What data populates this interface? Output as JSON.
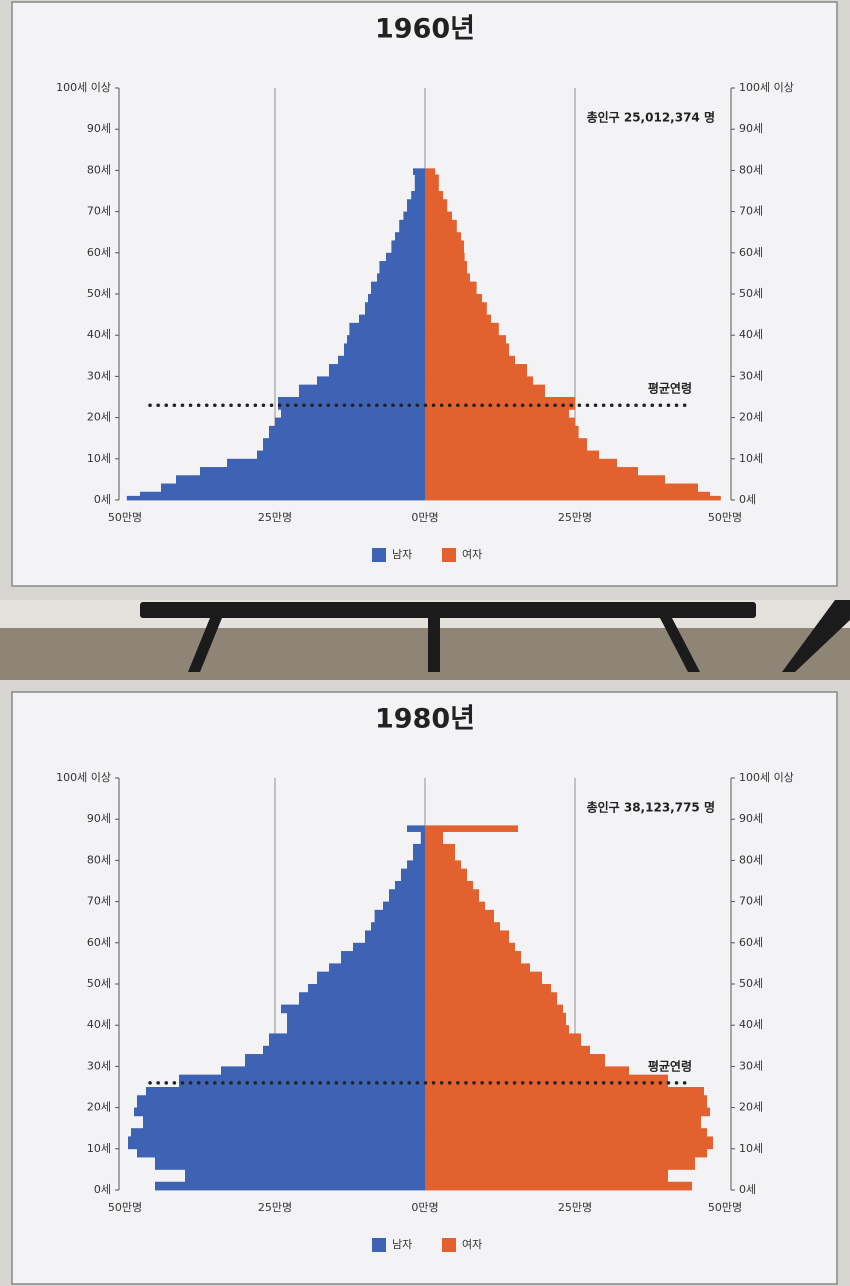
{
  "chart_data": [
    {
      "type": "pyramid",
      "title": "1960년",
      "annotation": "총인구 25,012,374 명",
      "average_age_label": "평균연령",
      "average_age": 23,
      "y": [
        0,
        1,
        2,
        4,
        6,
        8,
        10,
        12,
        15,
        18,
        20,
        22,
        25,
        28,
        30,
        33,
        35,
        38,
        40,
        43,
        45,
        48,
        50,
        53,
        55,
        58,
        60,
        63,
        65,
        68,
        70,
        73,
        75,
        79
      ],
      "series": [
        {
          "name": "남자",
          "color": "#3f63b4",
          "values": [
            49.7,
            47.5,
            44,
            41.5,
            37.5,
            33,
            28,
            27,
            26,
            25,
            24,
            24.5,
            21,
            18,
            16,
            14.5,
            13.5,
            13,
            12.6,
            11,
            10,
            9.5,
            9,
            8,
            7.6,
            6.5,
            5.6,
            5,
            4.3,
            3.6,
            3,
            2.3,
            1.7,
            2
          ]
        },
        {
          "name": "여자",
          "color": "#e2612e",
          "values": [
            49.3,
            47.5,
            45.5,
            40,
            35.5,
            32,
            29,
            27,
            25.6,
            25,
            24,
            25,
            20,
            18,
            17,
            15,
            14,
            13.5,
            12.3,
            11,
            10.3,
            9.5,
            8.6,
            7.5,
            7,
            6.6,
            6.5,
            6,
            5.3,
            4.5,
            3.7,
            3,
            2.3,
            1.7
          ]
        }
      ],
      "xlim": [
        -50,
        50
      ],
      "xticks": [
        {
          "value": -50,
          "label": "50만명"
        },
        {
          "value": -25,
          "label": "25만명"
        },
        {
          "value": 0,
          "label": "0만명"
        },
        {
          "value": 25,
          "label": "25만명"
        },
        {
          "value": 50,
          "label": "50만명"
        }
      ],
      "ylim": [
        0,
        100
      ],
      "yticks": [
        {
          "value": 0,
          "label": "0세"
        },
        {
          "value": 10,
          "label": "10세"
        },
        {
          "value": 20,
          "label": "20세"
        },
        {
          "value": 30,
          "label": "30세"
        },
        {
          "value": 40,
          "label": "40세"
        },
        {
          "value": 50,
          "label": "50세"
        },
        {
          "value": 60,
          "label": "60세"
        },
        {
          "value": 70,
          "label": "70세"
        },
        {
          "value": 80,
          "label": "80세"
        },
        {
          "value": 90,
          "label": "90세"
        },
        {
          "value": 100,
          "label": "100세 이상"
        }
      ]
    },
    {
      "type": "pyramid",
      "title": "1980년",
      "annotation": "총인구 38,123,775 명",
      "average_age_label": "평균연령",
      "average_age": 26,
      "y": [
        0,
        2,
        5,
        8,
        10,
        13,
        15,
        18,
        20,
        23,
        25,
        28,
        30,
        33,
        35,
        38,
        40,
        43,
        45,
        48,
        50,
        53,
        55,
        58,
        60,
        63,
        65,
        68,
        70,
        73,
        75,
        78,
        80,
        84,
        87
      ],
      "series": [
        {
          "name": "남자",
          "color": "#3f63b4",
          "values": [
            45,
            40,
            45,
            48,
            49.5,
            49,
            47,
            48.5,
            48,
            46.5,
            41,
            34,
            30,
            27,
            26,
            23,
            23,
            24,
            21,
            19.5,
            18,
            16,
            14,
            12,
            10,
            9,
            8.4,
            7,
            6,
            5,
            4,
            3,
            2,
            0.7,
            3
          ]
        },
        {
          "name": "여자",
          "color": "#e2612e",
          "values": [
            44.5,
            40.5,
            45,
            47,
            48,
            47,
            46,
            47.5,
            47,
            46.5,
            40.5,
            34,
            30,
            27.5,
            26,
            24,
            23.5,
            23,
            22,
            21,
            19.5,
            17.5,
            16,
            15,
            14,
            12.5,
            11.5,
            10,
            9,
            8,
            7,
            6,
            5,
            3,
            15.5
          ]
        }
      ],
      "xlim": [
        -50,
        50
      ],
      "xticks": [
        {
          "value": -50,
          "label": "50만명"
        },
        {
          "value": -25,
          "label": "25만명"
        },
        {
          "value": 0,
          "label": "0만명"
        },
        {
          "value": 25,
          "label": "25만명"
        },
        {
          "value": 50,
          "label": "50만명"
        }
      ],
      "ylim": [
        0,
        100
      ],
      "yticks": [
        {
          "value": 0,
          "label": "0세"
        },
        {
          "value": 10,
          "label": "10세"
        },
        {
          "value": 20,
          "label": "20세"
        },
        {
          "value": 30,
          "label": "30세"
        },
        {
          "value": 40,
          "label": "40세"
        },
        {
          "value": 50,
          "label": "50세"
        },
        {
          "value": 60,
          "label": "60세"
        },
        {
          "value": 70,
          "label": "70세"
        },
        {
          "value": 80,
          "label": "80세"
        },
        {
          "value": 90,
          "label": "90세"
        },
        {
          "value": 100,
          "label": "100세 이상"
        }
      ]
    }
  ]
}
